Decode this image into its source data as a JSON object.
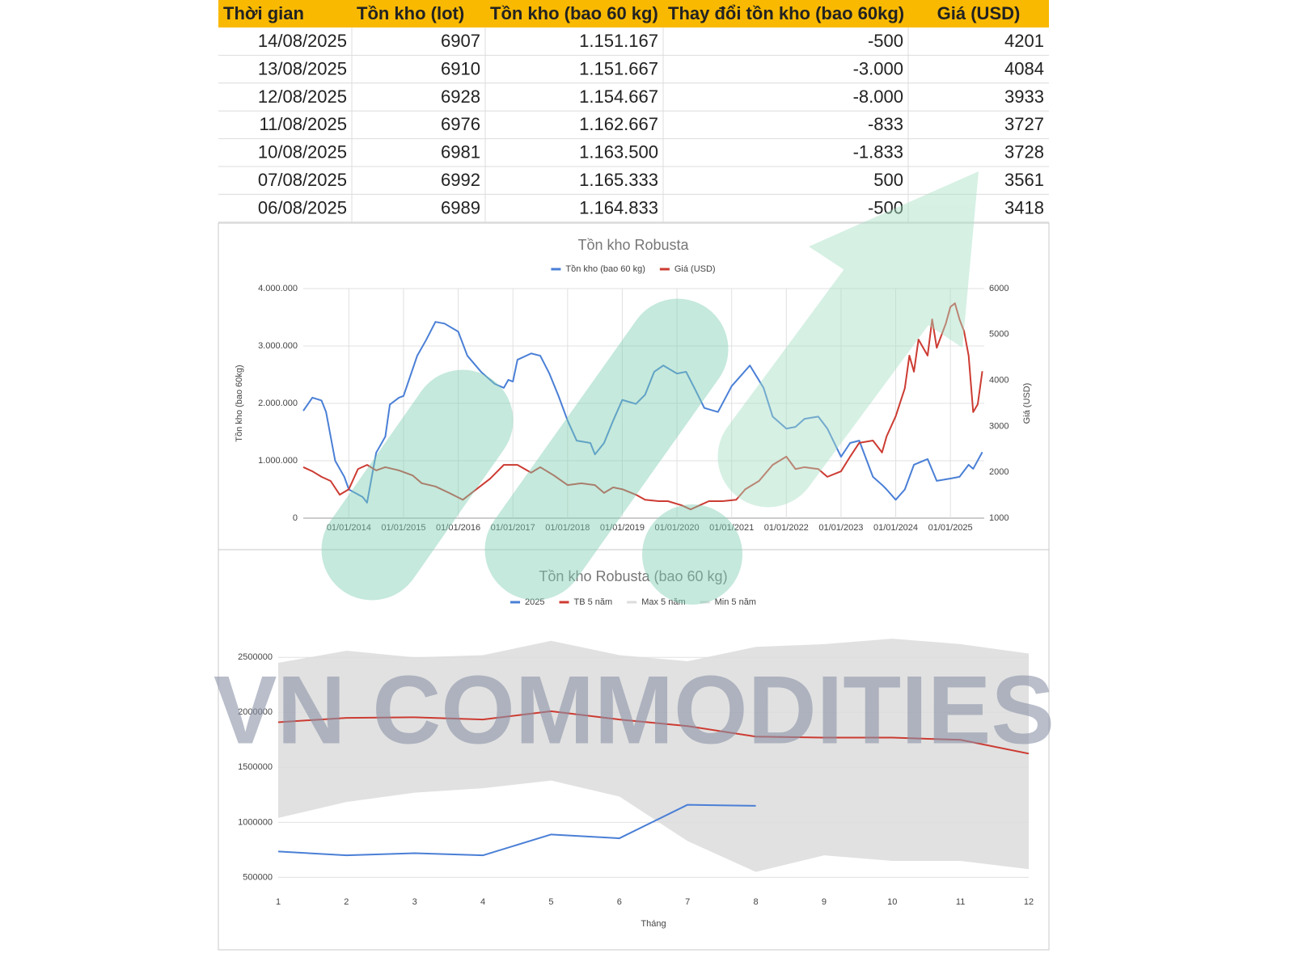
{
  "table": {
    "header": [
      "Thời gian",
      "Tồn kho (lot)",
      "Tồn kho (bao 60 kg)",
      "Thay đổi tồn kho (bao 60kg)",
      "Giá (USD)"
    ],
    "rows": [
      [
        "14/08/2025",
        "6907",
        "1.151.167",
        "-500",
        "4201"
      ],
      [
        "13/08/2025",
        "6910",
        "1.151.667",
        "-3.000",
        "4084"
      ],
      [
        "12/08/2025",
        "6928",
        "1.154.667",
        "-8.000",
        "3933"
      ],
      [
        "11/08/2025",
        "6976",
        "1.162.667",
        "-833",
        "3727"
      ],
      [
        "10/08/2025",
        "6981",
        "1.163.500",
        "-1.833",
        "3728"
      ],
      [
        "07/08/2025",
        "6992",
        "1.165.333",
        "500",
        "3561"
      ],
      [
        "06/08/2025",
        "6989",
        "1.164.833",
        "-500",
        "3418"
      ]
    ]
  },
  "watermark": "VN COMMODITIES",
  "chart_data": [
    {
      "type": "line",
      "title": "Tồn kho Robusta",
      "ylabel": "Tồn kho (bao 60kg)",
      "y2label": "Giá (USD)",
      "xlim": [
        "01/03/2013",
        "14/08/2025"
      ],
      "xticks": [
        "01/01/2014",
        "01/01/2015",
        "01/01/2016",
        "01/01/2017",
        "01/01/2018",
        "01/01/2019",
        "01/01/2020",
        "01/01/2021",
        "01/01/2022",
        "01/01/2023",
        "01/01/2024",
        "01/01/2025"
      ],
      "ylim": [
        0,
        4000000
      ],
      "yticks": [
        0,
        {
          "value": 1000000,
          "label": "1.000.000"
        },
        {
          "value": 2000000,
          "label": "2.000.000"
        },
        {
          "value": 3000000,
          "label": "3.000.000"
        },
        {
          "value": 4000000,
          "label": "4.000.000"
        }
      ],
      "y2lim": [
        1000,
        6000
      ],
      "y2ticks": [
        1000,
        2000,
        3000,
        4000,
        5000,
        6000
      ],
      "grid": true,
      "legend": "top",
      "series": [
        {
          "name": "Tồn kho (bao 60 kg)",
          "color": "#4a7fd6",
          "x": [
            "01/03/2013",
            "01/05/2013",
            "01/07/2013",
            "01/08/2013",
            "01/10/2013",
            "01/12/2013",
            "01/01/2014",
            "01/04/2014",
            "01/05/2014",
            "01/07/2014",
            "01/09/2014",
            "01/10/2014",
            "01/12/2014",
            "01/01/2015",
            "01/04/2015",
            "01/06/2015",
            "01/08/2015",
            "01/10/2015",
            "01/01/2016",
            "01/03/2016",
            "01/06/2016",
            "01/09/2016",
            "01/11/2016",
            "01/12/2016",
            "01/01/2017",
            "01/02/2017",
            "01/05/2017",
            "01/07/2017",
            "01/09/2017",
            "01/11/2017",
            "01/01/2018",
            "01/03/2018",
            "01/06/2018",
            "01/07/2018",
            "01/09/2018",
            "01/11/2018",
            "01/01/2019",
            "01/04/2019",
            "01/06/2019",
            "01/08/2019",
            "01/10/2019",
            "01/01/2020",
            "01/03/2020",
            "01/05/2020",
            "01/07/2020",
            "01/10/2020",
            "01/01/2021",
            "01/03/2021",
            "01/05/2021",
            "01/08/2021",
            "01/10/2021",
            "01/01/2022",
            "01/03/2022",
            "01/05/2022",
            "01/08/2022",
            "01/10/2022",
            "01/01/2023",
            "01/03/2023",
            "01/05/2023",
            "01/08/2023",
            "01/10/2023",
            "01/11/2023",
            "01/01/2024",
            "01/03/2024",
            "01/05/2024",
            "01/08/2024",
            "01/10/2024",
            "01/01/2025",
            "01/03/2025",
            "01/05/2025",
            "01/06/2025",
            "01/08/2025"
          ],
          "values": [
            1870000,
            2100000,
            2050000,
            1850000,
            1000000,
            720000,
            500000,
            370000,
            270000,
            1140000,
            1420000,
            1980000,
            2100000,
            2130000,
            2830000,
            3110000,
            3420000,
            3390000,
            3250000,
            2830000,
            2550000,
            2340000,
            2270000,
            2410000,
            2380000,
            2760000,
            2870000,
            2830000,
            2520000,
            2130000,
            1700000,
            1350000,
            1310000,
            1110000,
            1310000,
            1700000,
            2060000,
            1990000,
            2150000,
            2550000,
            2660000,
            2520000,
            2550000,
            2240000,
            1920000,
            1850000,
            2300000,
            2480000,
            2660000,
            2270000,
            1770000,
            1560000,
            1590000,
            1730000,
            1770000,
            1560000,
            1070000,
            1310000,
            1350000,
            720000,
            580000,
            500000,
            320000,
            500000,
            930000,
            1030000,
            650000,
            690000,
            720000,
            930000,
            860000,
            1150000
          ]
        },
        {
          "name": "Giá (USD)",
          "color": "#cc3b32",
          "axis": "y2",
          "x": [
            "01/03/2013",
            "01/05/2013",
            "01/07/2013",
            "01/09/2013",
            "01/11/2013",
            "01/01/2014",
            "01/03/2014",
            "01/05/2014",
            "01/07/2014",
            "01/09/2014",
            "01/12/2014",
            "01/03/2015",
            "01/05/2015",
            "01/08/2015",
            "01/11/2015",
            "01/02/2016",
            "01/05/2016",
            "01/08/2016",
            "01/11/2016",
            "01/02/2017",
            "01/05/2017",
            "01/07/2017",
            "01/10/2017",
            "01/01/2018",
            "01/04/2018",
            "01/07/2018",
            "01/09/2018",
            "01/11/2018",
            "01/01/2019",
            "01/04/2019",
            "01/06/2019",
            "01/09/2019",
            "01/11/2019",
            "01/02/2020",
            "01/04/2020",
            "01/06/2020",
            "01/08/2020",
            "01/11/2020",
            "01/02/2021",
            "01/04/2021",
            "01/07/2021",
            "01/10/2021",
            "01/01/2022",
            "01/03/2022",
            "01/05/2022",
            "01/08/2022",
            "01/10/2022",
            "01/01/2023",
            "01/03/2023",
            "01/05/2023",
            "01/08/2023",
            "01/10/2023",
            "01/11/2023",
            "01/01/2024",
            "01/03/2024",
            "01/04/2024",
            "01/05/2024",
            "01/06/2024",
            "01/08/2024",
            "01/09/2024",
            "01/10/2024",
            "01/12/2024",
            "01/01/2025",
            "01/02/2025",
            "01/03/2025",
            "01/04/2025",
            "01/05/2025",
            "01/06/2025",
            "01/07/2025",
            "01/08/2025"
          ],
          "values": [
            2110,
            2020,
            1900,
            1810,
            1510,
            1630,
            2070,
            2160,
            2040,
            2110,
            2040,
            1930,
            1760,
            1690,
            1550,
            1400,
            1630,
            1860,
            2160,
            2160,
            1990,
            2110,
            1930,
            1720,
            1760,
            1720,
            1550,
            1670,
            1630,
            1510,
            1400,
            1370,
            1370,
            1280,
            1190,
            1280,
            1370,
            1370,
            1400,
            1630,
            1810,
            2160,
            2340,
            2070,
            2110,
            2070,
            1900,
            2020,
            2340,
            2640,
            2690,
            2430,
            2780,
            3220,
            3830,
            4540,
            4190,
            4890,
            4540,
            5330,
            4710,
            5240,
            5600,
            5680,
            5330,
            5070,
            4540,
            3310,
            3480,
            4200
          ]
        }
      ]
    },
    {
      "type": "line",
      "title": "Tồn kho Robusta (bao 60 kg)",
      "xlabel": "Tháng",
      "x": [
        1,
        2,
        3,
        4,
        5,
        6,
        7,
        8,
        9,
        10,
        11,
        12
      ],
      "xlim": [
        1,
        12
      ],
      "xticks": [
        1,
        2,
        3,
        4,
        5,
        6,
        7,
        8,
        9,
        10,
        11,
        12
      ],
      "ylim": [
        400000,
        2700000
      ],
      "yticks": [
        500000,
        1000000,
        1500000,
        2000000,
        2500000
      ],
      "grid": true,
      "legend": "top",
      "area_between": [
        2,
        3
      ],
      "series": [
        {
          "name": "2025",
          "color": "#4a7fd6",
          "values": [
            735000,
            700000,
            720000,
            700000,
            890000,
            855000,
            1160000,
            1150000,
            null,
            null,
            null,
            null
          ]
        },
        {
          "name": "TB 5 năm",
          "color": "#cc3b32",
          "values": [
            1910000,
            1950000,
            1955000,
            1935000,
            2010000,
            1935000,
            1875000,
            1780000,
            1770000,
            1770000,
            1750000,
            1625000
          ]
        },
        {
          "name": "Max 5 năm",
          "color": "#dcdcdc",
          "values": [
            2450000,
            2560000,
            2500000,
            2520000,
            2650000,
            2520000,
            2465000,
            2595000,
            2620000,
            2670000,
            2620000,
            2535000
          ]
        },
        {
          "name": "Min 5 năm",
          "color": "#dcdcdc",
          "values": [
            1040000,
            1185000,
            1270000,
            1310000,
            1380000,
            1235000,
            830000,
            550000,
            700000,
            650000,
            650000,
            575000
          ]
        }
      ]
    }
  ]
}
